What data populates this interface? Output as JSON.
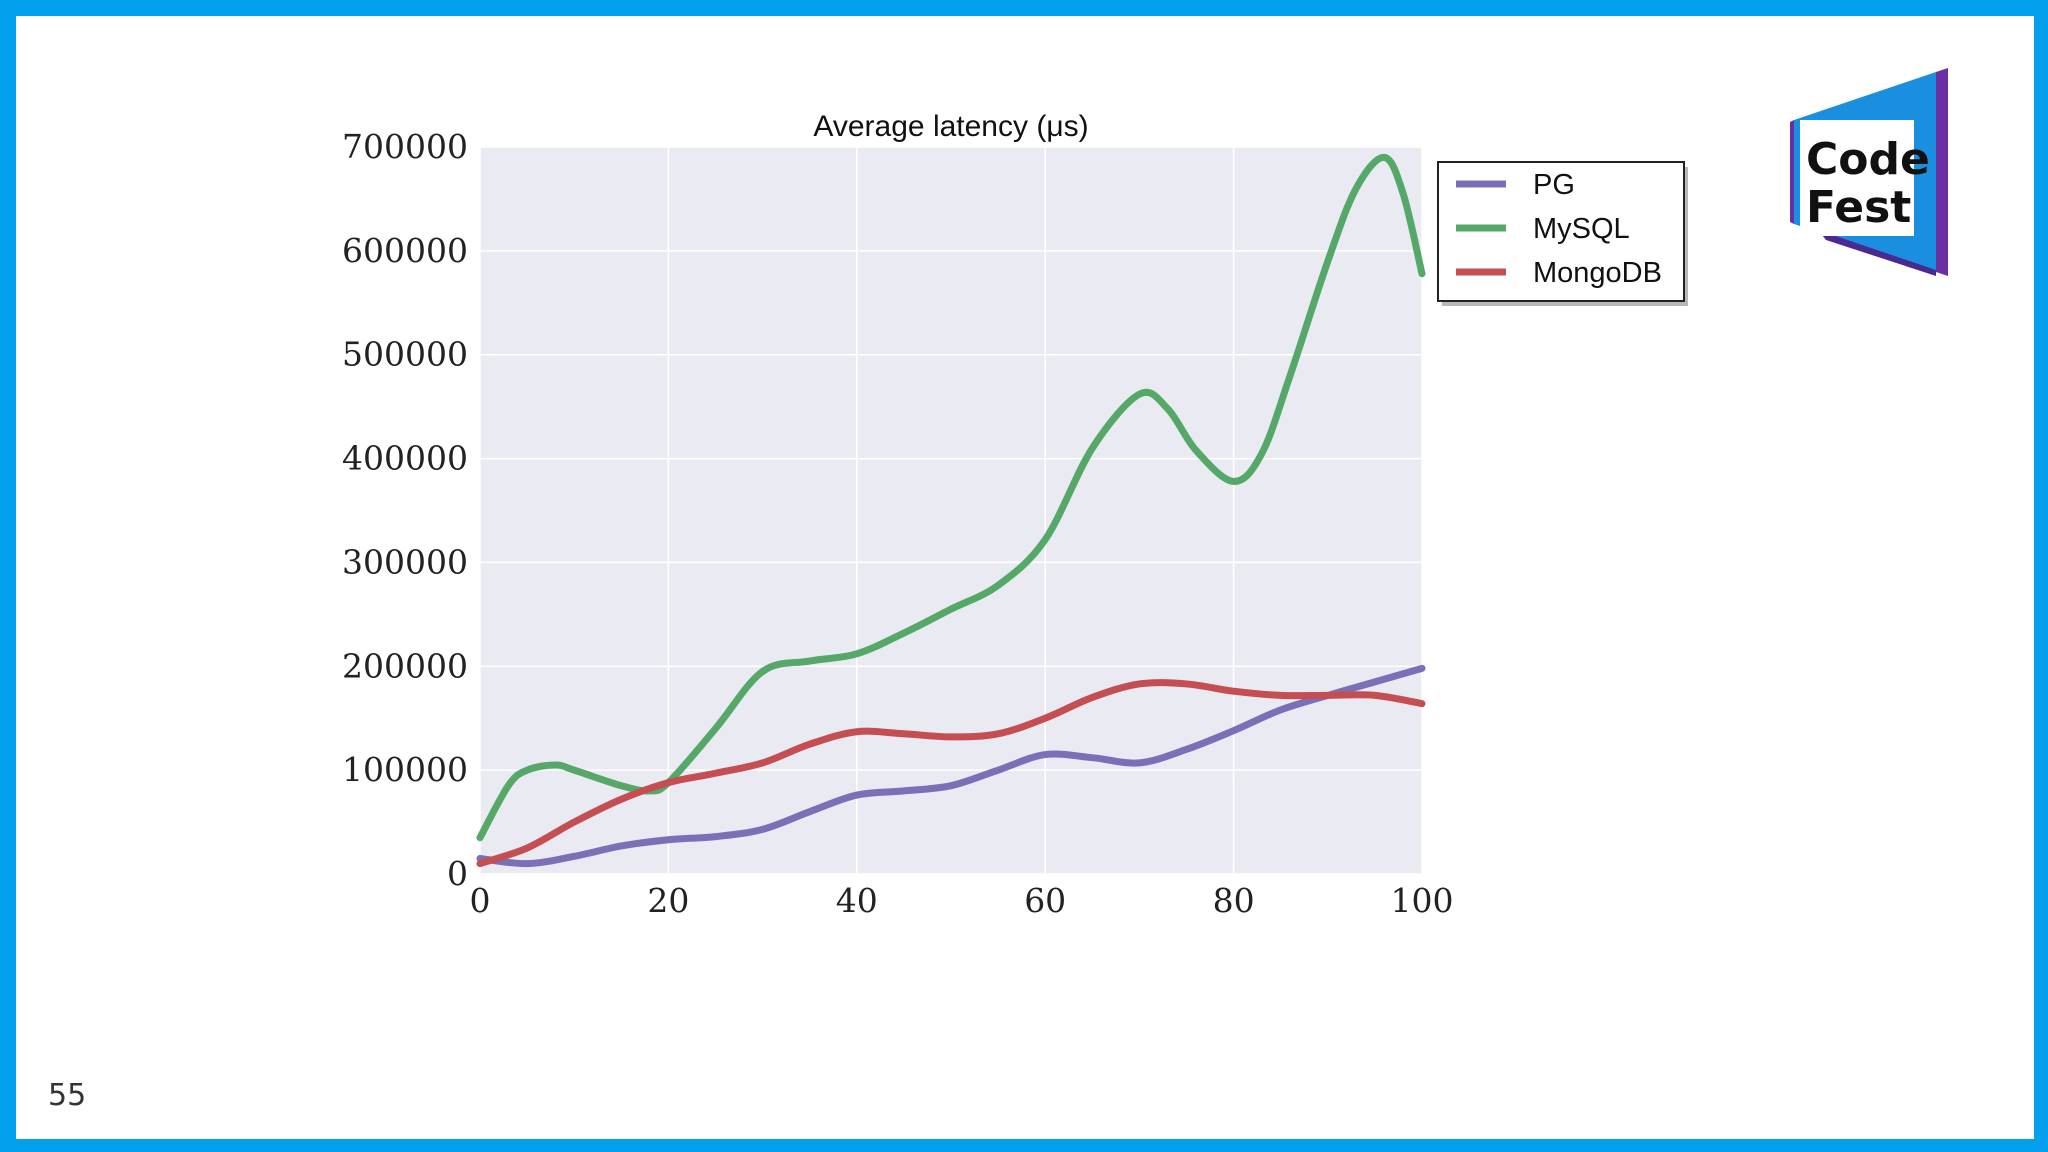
{
  "page": {
    "number": "55"
  },
  "logo": {
    "line1": "Code",
    "line2": "Fest",
    "primary": "#1a8fe0",
    "secondary": "#6a2fa3",
    "icon": "codefest-logo"
  },
  "chart_data": {
    "type": "line",
    "title": "Average latency (μs)",
    "xlabel": "",
    "ylabel": "",
    "xlim": [
      0,
      100
    ],
    "ylim": [
      0,
      700000
    ],
    "xticks": [
      0,
      20,
      40,
      60,
      80,
      100
    ],
    "yticks": [
      0,
      100000,
      200000,
      300000,
      400000,
      500000,
      600000,
      700000
    ],
    "xtick_labels": [
      "0",
      "20",
      "40",
      "60",
      "80",
      "100"
    ],
    "ytick_labels": [
      "0",
      "100000",
      "200000",
      "300000",
      "400000",
      "500000",
      "600000",
      "700000"
    ],
    "grid": true,
    "legend_position": "outside-right-top",
    "series": [
      {
        "name": "PG",
        "color": "#7b6fb8",
        "x": [
          0,
          5,
          10,
          15,
          20,
          25,
          30,
          35,
          40,
          45,
          50,
          55,
          60,
          65,
          70,
          75,
          80,
          85,
          90,
          95,
          100
        ],
        "y": [
          15000,
          10000,
          17000,
          27000,
          33000,
          36000,
          43000,
          60000,
          76000,
          80000,
          85000,
          100000,
          115000,
          112000,
          107000,
          120000,
          138000,
          158000,
          172000,
          185000,
          198000
        ]
      },
      {
        "name": "MySQL",
        "color": "#55a868",
        "x": [
          0,
          3,
          5,
          8,
          10,
          15,
          18,
          20,
          25,
          30,
          35,
          40,
          45,
          50,
          55,
          60,
          65,
          70,
          73,
          76,
          80,
          83,
          86,
          90,
          93,
          96,
          98,
          100
        ],
        "y": [
          35000,
          85000,
          100000,
          105000,
          100000,
          85000,
          80000,
          88000,
          140000,
          195000,
          205000,
          212000,
          232000,
          255000,
          278000,
          322000,
          410000,
          462000,
          448000,
          408000,
          378000,
          405000,
          480000,
          590000,
          660000,
          690000,
          655000,
          578000
        ]
      },
      {
        "name": "MongoDB",
        "color": "#c44e52",
        "x": [
          0,
          5,
          10,
          15,
          20,
          25,
          30,
          35,
          40,
          45,
          50,
          55,
          60,
          65,
          70,
          75,
          80,
          85,
          90,
          95,
          100
        ],
        "y": [
          10000,
          25000,
          50000,
          72000,
          88000,
          97000,
          107000,
          125000,
          137000,
          135000,
          132000,
          135000,
          150000,
          170000,
          183000,
          183000,
          176000,
          172000,
          172000,
          172000,
          164000
        ]
      }
    ]
  }
}
